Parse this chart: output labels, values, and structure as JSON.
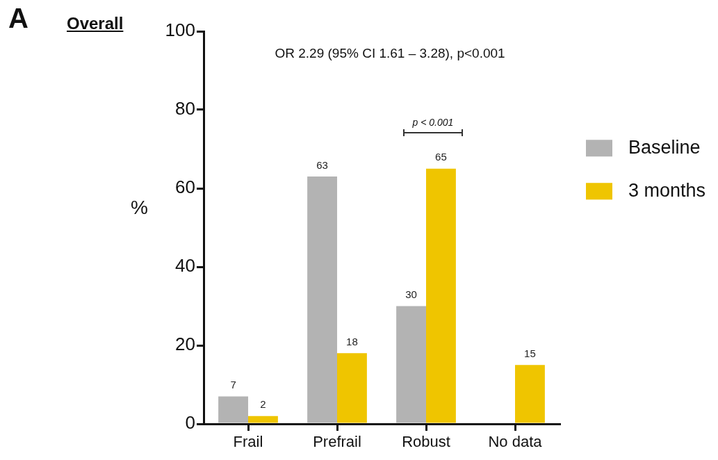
{
  "chart_data": {
    "type": "bar",
    "title": "Overall",
    "ylabel": "%",
    "categories": [
      "Frail",
      "Prefrail",
      "Robust",
      "No data"
    ],
    "series": [
      {
        "name": "Baseline",
        "color": "#b3b3b3",
        "values": [
          7,
          63,
          30,
          null
        ]
      },
      {
        "name": "3 months",
        "color": "#efc500",
        "values": [
          2,
          18,
          65,
          15
        ]
      }
    ],
    "ylim": [
      0,
      100
    ],
    "yticks": [
      0,
      20,
      40,
      60,
      80,
      100
    ],
    "legend": "right",
    "data_labels": true,
    "annotations": [
      "A",
      "OR 2.29 (95% CI 1.61 – 3.28), p<0.001",
      "p < 0.001"
    ]
  }
}
